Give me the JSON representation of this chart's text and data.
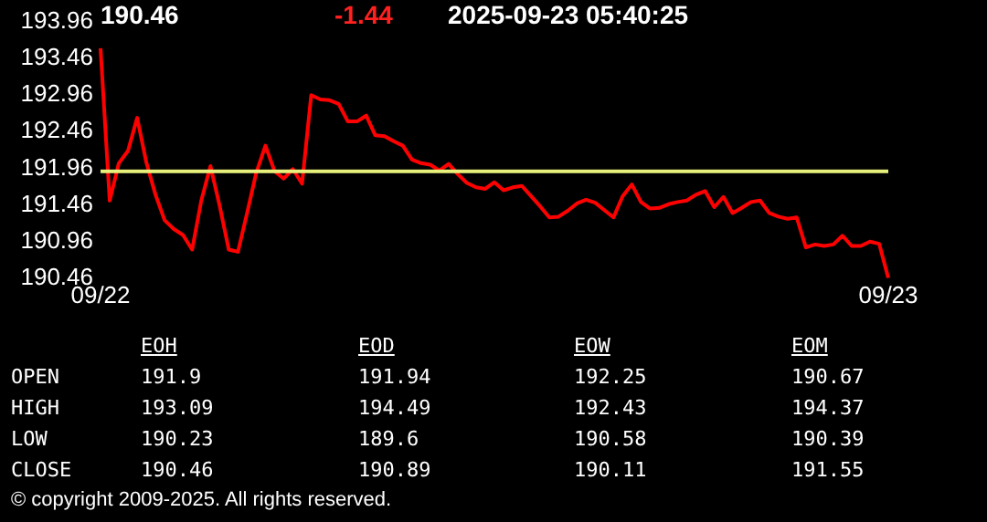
{
  "chart_data": {
    "type": "line",
    "annotations": [
      "190.46",
      "-1.44",
      "2025-09-23 05:40:25",
      "EOH",
      "EOD",
      "EOW",
      "EOM",
      "OPEN",
      "191.9",
      "191.94",
      "192.25",
      "190.67",
      "HIGH",
      "193.09",
      "194.49",
      "192.43",
      "194.37",
      "LOW",
      "190.23",
      "189.6",
      "190.58",
      "190.39",
      "CLOSE",
      "190.46",
      "190.89",
      "190.11",
      "191.55",
      "© copyright 2009-2025. All rights reserved."
    ],
    "categories": [
      "09/22",
      null,
      null,
      null,
      null,
      null,
      null,
      null,
      null,
      null,
      null,
      null,
      null,
      null,
      null,
      null,
      null,
      null,
      null,
      null,
      null,
      null,
      null,
      null,
      null,
      null,
      null,
      null,
      null,
      null,
      null,
      null,
      null,
      null,
      null,
      null,
      null,
      null,
      null,
      null,
      null,
      null,
      null,
      null,
      null,
      null,
      null,
      null,
      null,
      null,
      null,
      null,
      null,
      null,
      null,
      null,
      null,
      null,
      null,
      null,
      null,
      null,
      null,
      null,
      null,
      null,
      null,
      null,
      null,
      null,
      null,
      null,
      null,
      null,
      null,
      null,
      null,
      null,
      null,
      null,
      null,
      null,
      null,
      null,
      null,
      null,
      "09/23"
    ],
    "values": [
      193.6,
      191.52,
      192.03,
      192.2,
      192.65,
      192.04,
      191.6,
      191.25,
      191.13,
      191.05,
      190.85,
      191.52,
      191.99,
      191.45,
      190.85,
      190.82,
      191.35,
      191.9,
      192.27,
      191.92,
      191.82,
      191.95,
      191.75,
      192.96,
      192.9,
      192.89,
      192.84,
      192.6,
      192.6,
      192.68,
      192.41,
      192.4,
      192.33,
      192.27,
      192.08,
      192.03,
      192.01,
      191.93,
      192.02,
      191.88,
      191.76,
      191.7,
      191.68,
      191.77,
      191.66,
      191.7,
      191.72,
      191.58,
      191.44,
      191.29,
      191.3,
      191.38,
      191.48,
      191.53,
      191.49,
      191.39,
      191.29,
      191.58,
      191.74,
      191.5,
      191.41,
      191.42,
      191.47,
      191.5,
      191.52,
      191.6,
      191.65,
      191.43,
      191.57,
      191.35,
      191.42,
      191.5,
      191.52,
      191.35,
      191.3,
      191.27,
      191.29,
      190.88,
      190.92,
      190.9,
      190.92,
      191.04,
      190.9,
      190.9,
      190.96,
      190.93,
      190.46
    ],
    "color": "#ff0000",
    "ylim": [
      190.46,
      193.96
    ],
    "yticks": [
      190.46,
      190.96,
      191.46,
      191.96,
      192.46,
      192.96,
      193.46,
      193.96
    ],
    "ref_lines": [
      {
        "axis": "y",
        "value": 191.92,
        "color": "#e6f07a"
      }
    ],
    "grid": false,
    "legend": false,
    "marker": "none",
    "line_style": "solid"
  }
}
